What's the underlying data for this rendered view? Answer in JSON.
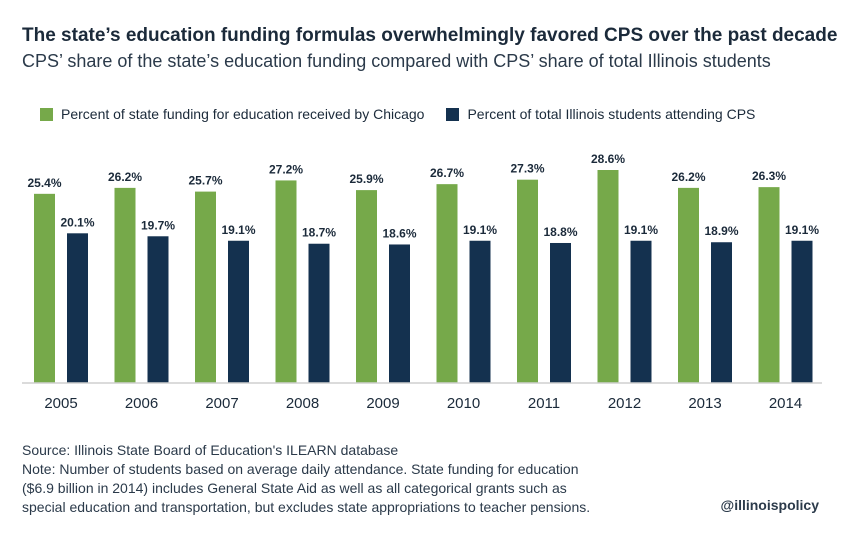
{
  "title": "The state’s education funding formulas overwhelmingly favored CPS over the past decade",
  "subtitle": "CPS’ share of the state’s education funding compared with CPS’ share of total Illinois students",
  "colors": {
    "green": "#76a94a",
    "navy": "#14314f",
    "axis": "#cfcfcf"
  },
  "chart_data": {
    "type": "bar",
    "categories": [
      "2005",
      "2006",
      "2007",
      "2008",
      "2009",
      "2010",
      "2011",
      "2012",
      "2013",
      "2014"
    ],
    "series": [
      {
        "name": "Percent of state funding for education received by Chicago",
        "color": "#76a94a",
        "values": [
          25.4,
          26.2,
          25.7,
          27.2,
          25.9,
          26.7,
          27.3,
          28.6,
          26.2,
          26.3
        ],
        "labels": [
          "25.4%",
          "26.2%",
          "25.7%",
          "27.2%",
          "25.9%",
          "26.7%",
          "27.3%",
          "28.6%",
          "26.2%",
          "26.3%"
        ]
      },
      {
        "name": "Percent of total Illinois students attending CPS",
        "color": "#14314f",
        "values": [
          20.1,
          19.7,
          19.1,
          18.7,
          18.6,
          19.1,
          18.8,
          19.1,
          18.9,
          19.1
        ],
        "labels": [
          "20.1%",
          "19.7%",
          "19.1%",
          "18.7%",
          "18.6%",
          "19.1%",
          "18.8%",
          "19.1%",
          "18.9%",
          "19.1%"
        ]
      }
    ],
    "ylim": [
      0,
      28.6
    ],
    "grid": false,
    "legend_position": "top"
  },
  "footer": {
    "source": "Source: Illinois State Board of Education's ILEARN database",
    "note_lines": [
      "Note: Number of students based on average daily attendance. State funding for education",
      "($6.9 billion in 2014) includes General State Aid as well as all categorical grants such as",
      "special education and transportation, but excludes state appropriations to teacher pensions."
    ]
  },
  "handle": "@illinoispolicy"
}
